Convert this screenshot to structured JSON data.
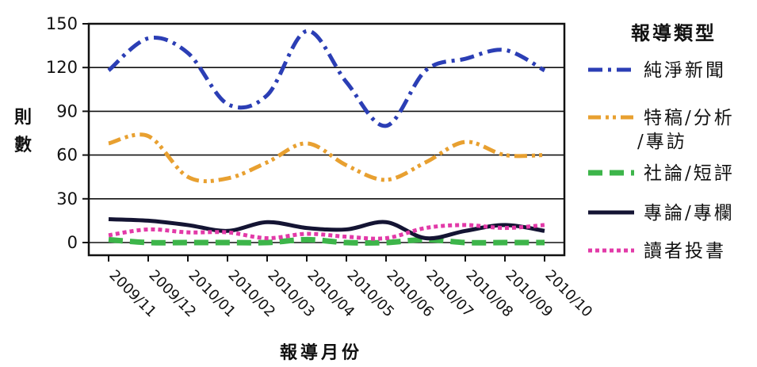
{
  "chart_data": {
    "type": "line",
    "xlabel": "報導月份",
    "ylabel": "則數",
    "ylim": [
      0,
      150
    ],
    "yticks": [
      0,
      30,
      60,
      90,
      120,
      150
    ],
    "grid": "horizontal",
    "legend_position": "right",
    "legend_title": "報導類型",
    "categories": [
      "2009/11",
      "2009/12",
      "2010/01",
      "2010/02",
      "2010/03",
      "2010/04",
      "2010/05",
      "2010/06",
      "2010/07",
      "2010/08",
      "2010/09",
      "2010/10"
    ],
    "series": [
      {
        "name": "純淨新聞",
        "color": "#2b3eb5",
        "dash": "dashdot",
        "legend_lines": [
          "純淨新聞"
        ],
        "values": [
          118,
          140,
          130,
          95,
          101,
          145,
          110,
          80,
          118,
          126,
          132,
          118
        ]
      },
      {
        "name": "特稿/分析/專訪",
        "color": "#e8a030",
        "dash": "dashdotdot",
        "legend_lines": [
          "特稿/分析",
          "/專訪"
        ],
        "values": [
          68,
          73,
          45,
          44,
          55,
          68,
          53,
          43,
          55,
          69,
          60,
          60
        ]
      },
      {
        "name": "社論/短評",
        "color": "#3db54a",
        "dash": "dash",
        "legend_lines": [
          "社論/短評"
        ],
        "values": [
          2,
          0,
          0,
          0,
          0,
          2,
          0,
          0,
          2,
          0,
          0,
          0
        ]
      },
      {
        "name": "專論/專欄",
        "color": "#141433",
        "dash": "solid",
        "legend_lines": [
          "專論/專欄"
        ],
        "values": [
          16,
          15,
          12,
          8,
          14,
          10,
          9,
          14,
          3,
          8,
          12,
          8
        ]
      },
      {
        "name": "讀者投書",
        "color": "#e23aa8",
        "dash": "dot",
        "legend_lines": [
          "讀者投書"
        ],
        "values": [
          5,
          9,
          7,
          7,
          3,
          6,
          4,
          3,
          10,
          12,
          10,
          12
        ]
      }
    ]
  }
}
